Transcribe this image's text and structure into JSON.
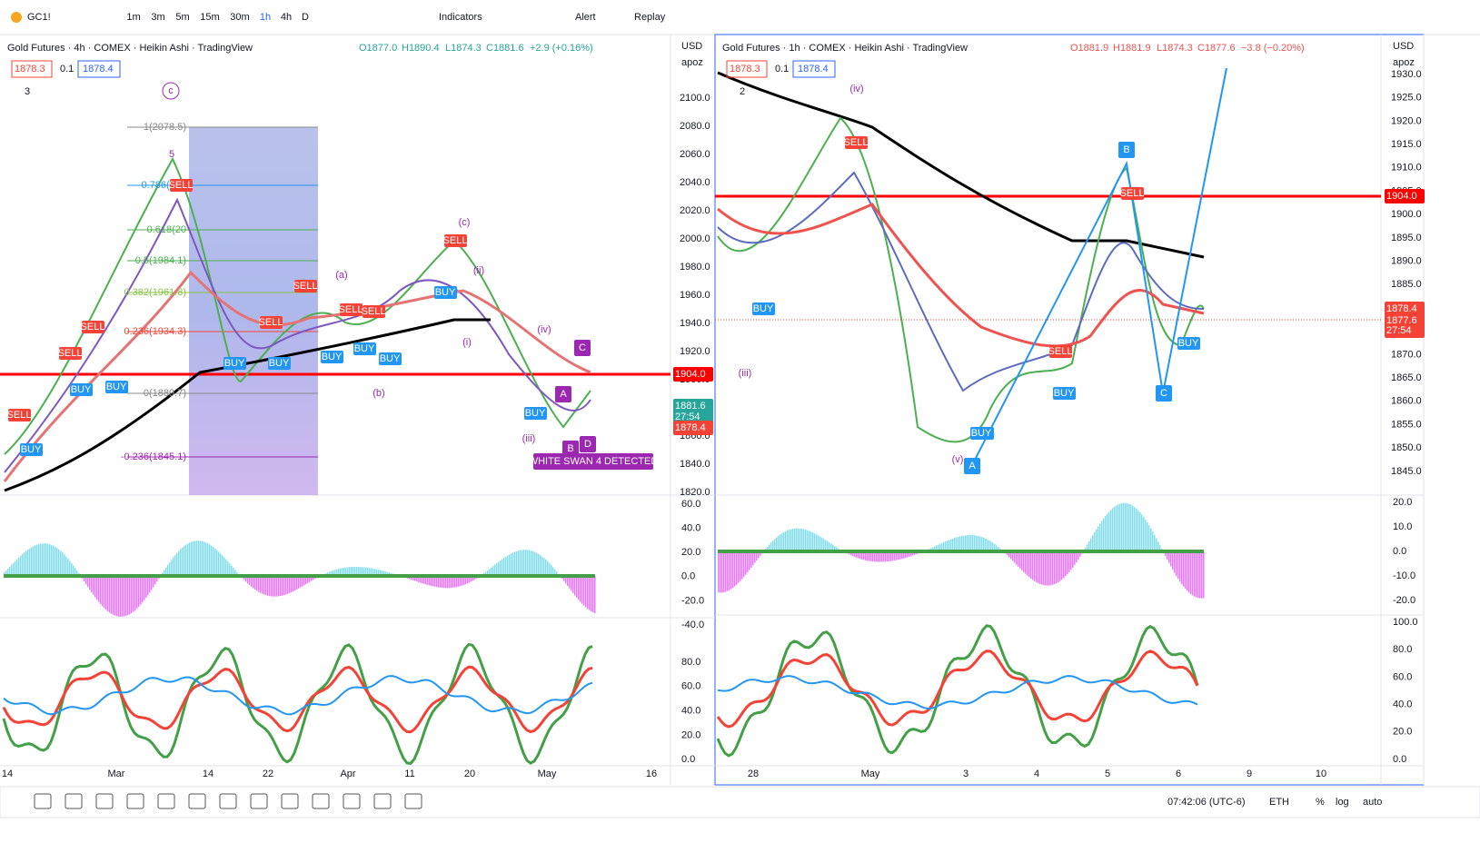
{
  "toolbar": {
    "symbol": "GC1!",
    "intervals": [
      "1m",
      "3m",
      "5m",
      "15m",
      "30m",
      "1h",
      "4h",
      "D"
    ],
    "indicators": "Indicators",
    "alert": "Alert",
    "replay": "Replay"
  },
  "left": {
    "title": "Gold Futures · 4h · COMEX · Heikin Ashi · TradingView",
    "o": "O1877.0",
    "h": "H1890.4",
    "l": "L1874.3",
    "c": "C1881.6",
    "change": "+2.9 (+0.16%)",
    "bid": "1878.3",
    "spread": "0.1",
    "ask": "1878.4",
    "count": "3",
    "currency": "USD",
    "scale": "apoz",
    "price_ticks": [
      "2100.0",
      "2080.0",
      "2060.0",
      "2040.0",
      "2020.0",
      "2000.0",
      "1980.0",
      "1960.0",
      "1940.0",
      "1920.0",
      "1900.0",
      "1880.0",
      "1860.0",
      "1840.0",
      "1820.0"
    ],
    "osc_ticks": [
      "60.0",
      "40.0",
      "20.0",
      "0.0",
      "-20.0",
      "-40.0"
    ],
    "rsi_ticks": [
      "80.0",
      "60.0",
      "40.0",
      "20.0",
      "0.0"
    ],
    "time_labels": [
      "14",
      "Mar",
      "14",
      "22",
      "Apr",
      "11",
      "20",
      "May",
      "16"
    ],
    "price_tags": [
      "1904.0",
      "1881.6",
      "27:54",
      "1878.4"
    ],
    "fib": [
      "1(2078.5)",
      "0.786(203",
      "0.618(20",
      "0.5(1984.1)",
      "0.382(1961.8)",
      "0.236(1934.3)",
      "0(1889.7)",
      "-0.236(1845.1)"
    ],
    "waves": [
      "c",
      "5",
      "(a)",
      "(b)",
      "(c)",
      "(i)",
      "(ii)",
      "(iii)",
      "(iv)"
    ],
    "signals": [
      "SELL",
      "BUY",
      "SELL",
      "BUY",
      "BUY",
      "SELL",
      "SELL",
      "SELL",
      "BUY",
      "BUY",
      "SELL",
      "SELL",
      "BUY",
      "BUY",
      "SELL",
      "BUY",
      "SELL",
      "BUY",
      "BUY"
    ],
    "points": [
      "A",
      "B",
      "C",
      "D"
    ],
    "banner": "WHITE SWAN 4 DETECTED"
  },
  "right": {
    "title": "Gold Futures · 1h · COMEX · Heikin Ashi · TradingView",
    "o": "O1881.9",
    "h": "H1881.9",
    "l": "L1874.3",
    "c": "C1877.6",
    "change": "−3.8 (−0.20%)",
    "bid": "1878.3",
    "spread": "0.1",
    "ask": "1878.4",
    "count": "2",
    "currency": "USD",
    "scale": "apoz",
    "price_ticks": [
      "1930.0",
      "1925.0",
      "1920.0",
      "1915.0",
      "1910.0",
      "1905.0",
      "1900.0",
      "1895.0",
      "1890.0",
      "1885.0",
      "1880.0",
      "1875.0",
      "1870.0",
      "1865.0",
      "1860.0",
      "1855.0",
      "1850.0",
      "1845.0"
    ],
    "osc_ticks": [
      "20.0",
      "10.0",
      "0.0",
      "-10.0",
      "-20.0"
    ],
    "rsi_ticks": [
      "100.0",
      "80.0",
      "60.0",
      "40.0",
      "20.0",
      "0.0"
    ],
    "time_labels": [
      "28",
      "May",
      "3",
      "4",
      "5",
      "6",
      "9",
      "10"
    ],
    "price_tags": [
      "1904.0",
      "1878.4",
      "1877.6",
      "27:54"
    ],
    "waves": [
      "(iv)",
      "(iii)",
      "(v)"
    ],
    "signals": [
      "BUY",
      "SELL",
      "SELL",
      "BUY",
      "BUY",
      "SELL",
      "BUY",
      "BUY"
    ],
    "points": [
      "A",
      "B",
      "C"
    ]
  },
  "bottom": {
    "clock": "07:42:06 (UTC-6)",
    "session": "ETH",
    "percent": "%",
    "log": "log",
    "auto": "auto"
  }
}
